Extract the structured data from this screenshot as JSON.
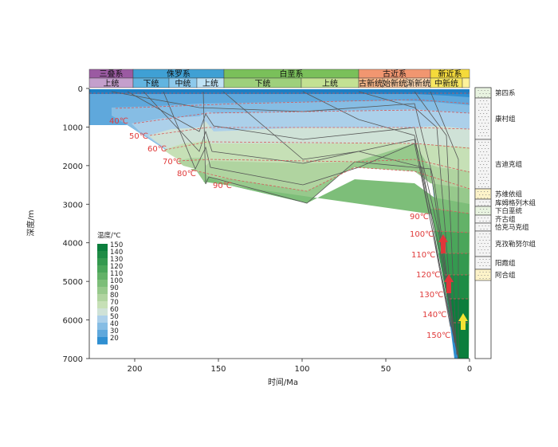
{
  "periods": [
    {
      "name": "三叠系",
      "color": "#9b5aa2",
      "x0": 112,
      "x1": 167
    },
    {
      "name": "侏罗系",
      "color": "#3fa0d4",
      "x0": 167,
      "x1": 281
    },
    {
      "name": "白垩系",
      "color": "#7ac05a",
      "x0": 281,
      "x1": 450
    },
    {
      "name": "古近系",
      "color": "#f19670",
      "x0": 450,
      "x1": 540
    },
    {
      "name": "新近系",
      "color": "#f5da3a",
      "x0": 540,
      "x1": 589
    }
  ],
  "epochs": [
    {
      "name": "上统",
      "color": "#c49fcc",
      "x0": 112,
      "x1": 167
    },
    {
      "name": "下统",
      "color": "#62b4e0",
      "x0": 167,
      "x1": 212
    },
    {
      "name": "中统",
      "color": "#8dc9ec",
      "x0": 212,
      "x1": 247
    },
    {
      "name": "上统",
      "color": "#bfe2f5",
      "x0": 247,
      "x1": 281
    },
    {
      "name": "下统",
      "color": "#9ed07c",
      "x0": 281,
      "x1": 378
    },
    {
      "name": "上统",
      "color": "#c3e193",
      "x0": 378,
      "x1": 450
    },
    {
      "name": "古新统",
      "color": "#f9b789",
      "x0": 450,
      "x1": 480
    },
    {
      "name": "始新统",
      "color": "#fbc79d",
      "x0": 480,
      "x1": 510
    },
    {
      "name": "渐新统",
      "color": "#fcd7b2",
      "x0": 510,
      "x1": 540
    },
    {
      "name": "中新统",
      "color": "#f7e761",
      "x0": 540,
      "x1": 580
    },
    {
      "name": "",
      "color": "#fdf29b",
      "x0": 580,
      "x1": 589
    }
  ],
  "axes": {
    "xlabel": "时间/Ma",
    "ylabel": "深度/m",
    "x_ticks": [
      "200",
      "150",
      "100",
      "50",
      "0"
    ],
    "y_ticks": [
      "0",
      "1000",
      "2000",
      "3000",
      "4000",
      "5000",
      "6000",
      "7000"
    ]
  },
  "isotherms_upper": [
    {
      "label": "40℃",
      "tx": 137,
      "ty": 155
    },
    {
      "label": "50℃",
      "tx": 162,
      "ty": 174
    },
    {
      "label": "60℃",
      "tx": 185,
      "ty": 190
    },
    {
      "label": "70℃",
      "tx": 204,
      "ty": 206
    },
    {
      "label": "80℃",
      "tx": 222,
      "ty": 221
    },
    {
      "label": "90℃",
      "tx": 267,
      "ty": 236
    }
  ],
  "isotherms_lower": [
    {
      "label": "90℃",
      "tx": 514,
      "ty": 275
    },
    {
      "label": "100℃",
      "tx": 514,
      "ty": 297
    },
    {
      "label": "110℃",
      "tx": 516,
      "ty": 323
    },
    {
      "label": "120℃",
      "tx": 522,
      "ty": 348
    },
    {
      "label": "130℃",
      "tx": 526,
      "ty": 373
    },
    {
      "label": "140℃",
      "tx": 530,
      "ty": 398
    },
    {
      "label": "150℃",
      "tx": 535,
      "ty": 424
    }
  ],
  "legend": {
    "title": "温度/℃",
    "values": [
      "150",
      "140",
      "130",
      "120",
      "110",
      "100",
      "90",
      "80",
      "70",
      "60",
      "50",
      "40",
      "30",
      "20"
    ],
    "colors": [
      "#0b7e3c",
      "#1e8c45",
      "#34994f",
      "#4aa65a",
      "#63b268",
      "#7dbe79",
      "#97c98c",
      "#b0d4a0",
      "#c6e0b6",
      "#cfe2d7",
      "#acd0ea",
      "#86bde4",
      "#5fa8dc",
      "#2f8fd1"
    ]
  },
  "formations": [
    {
      "name": "第四系",
      "y0": 110,
      "y1": 123,
      "fill": "#e8f3e0"
    },
    {
      "name": "康村组",
      "y0": 123,
      "y1": 175,
      "fill": "#f4f4f4"
    },
    {
      "name": "吉迪克组",
      "y0": 175,
      "y1": 237,
      "fill": "#f4f4f4"
    },
    {
      "name": "苏维依组",
      "y0": 237,
      "y1": 250,
      "fill": "#fdf3c9"
    },
    {
      "name": "库姆格列木组",
      "y0": 250,
      "y1": 259,
      "fill": "#f4f4f4"
    },
    {
      "name": "下白垩统",
      "y0": 259,
      "y1": 270,
      "fill": "#e8f3e0"
    },
    {
      "name": "齐古组",
      "y0": 270,
      "y1": 280,
      "fill": "#f4f4f4"
    },
    {
      "name": "恰克马克组",
      "y0": 280,
      "y1": 290,
      "fill": "#f4f4f4"
    },
    {
      "name": "克孜勒努尔组",
      "y0": 290,
      "y1": 322,
      "fill": "#f4f4f4"
    },
    {
      "name": "阳霞组",
      "y0": 322,
      "y1": 338,
      "fill": "#f4f4f4"
    },
    {
      "name": "阿合组",
      "y0": 338,
      "y1": 352,
      "fill": "#fdf3c9"
    }
  ]
}
